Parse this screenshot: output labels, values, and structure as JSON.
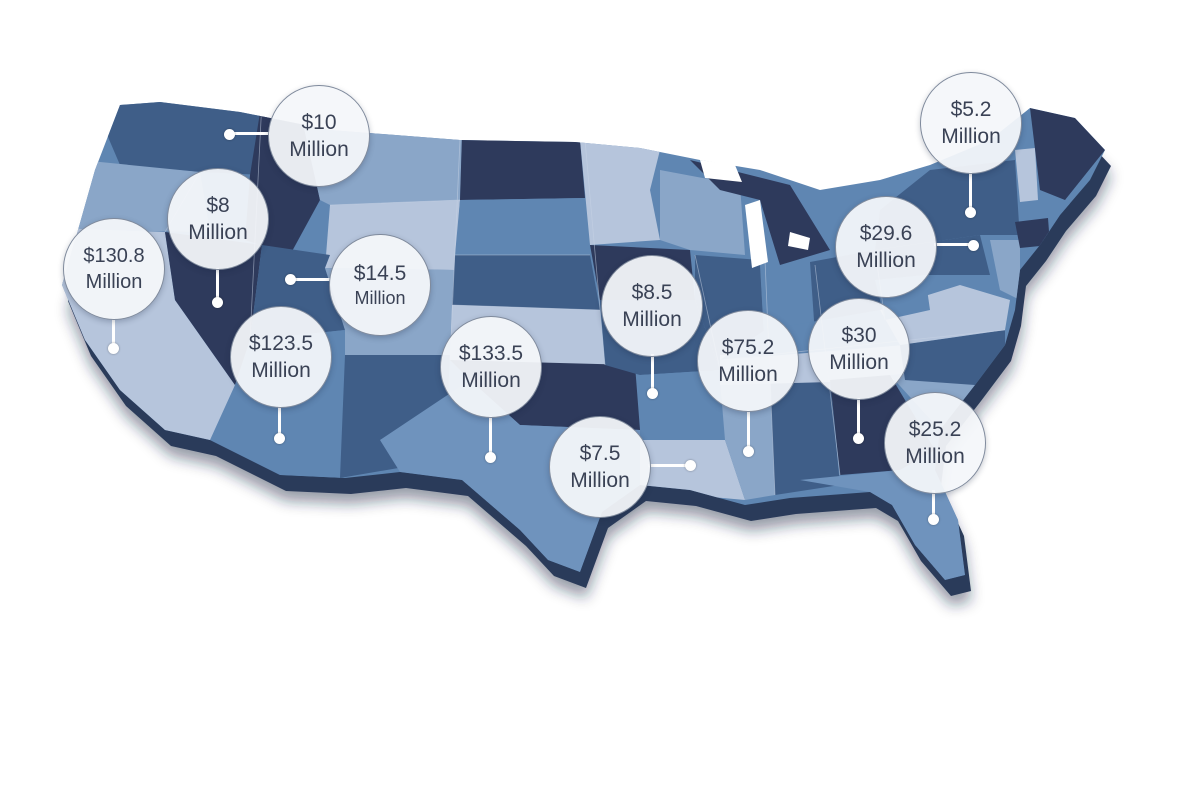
{
  "map": {
    "region": "contiguous-united-states",
    "style": "3d-extruded-blue-choropleth",
    "colors": {
      "darkest": "#2e3a5c",
      "dark": "#3f5e88",
      "mid": "#5f86b2",
      "light": "#8aa6c8",
      "lightest": "#b6c5dc",
      "edge": "#24324f",
      "bubble_fill": "#f4f6fa",
      "bubble_text": "#3a4255"
    }
  },
  "callouts": [
    {
      "id": "washington",
      "amount": "$10",
      "unit": "Million"
    },
    {
      "id": "nevada",
      "amount": "$8",
      "unit": "Million"
    },
    {
      "id": "california",
      "amount": "$130.8",
      "unit": "Million"
    },
    {
      "id": "utah",
      "amount": "$14.5",
      "unit": "Million"
    },
    {
      "id": "arizona",
      "amount": "$123.5",
      "unit": "Million"
    },
    {
      "id": "texas",
      "amount": "$133.5",
      "unit": "Million"
    },
    {
      "id": "arkansas",
      "amount": "$8.5",
      "unit": "Million"
    },
    {
      "id": "louisiana",
      "amount": "$7.5",
      "unit": "Million"
    },
    {
      "id": "mississippi",
      "amount": "$75.2",
      "unit": "Million"
    },
    {
      "id": "georgia",
      "amount": "$30",
      "unit": "Million"
    },
    {
      "id": "florida",
      "amount": "$25.2",
      "unit": "Million"
    },
    {
      "id": "new-jersey",
      "amount": "$29.6",
      "unit": "Million"
    },
    {
      "id": "new-york",
      "amount": "$5.2",
      "unit": "Million"
    }
  ]
}
